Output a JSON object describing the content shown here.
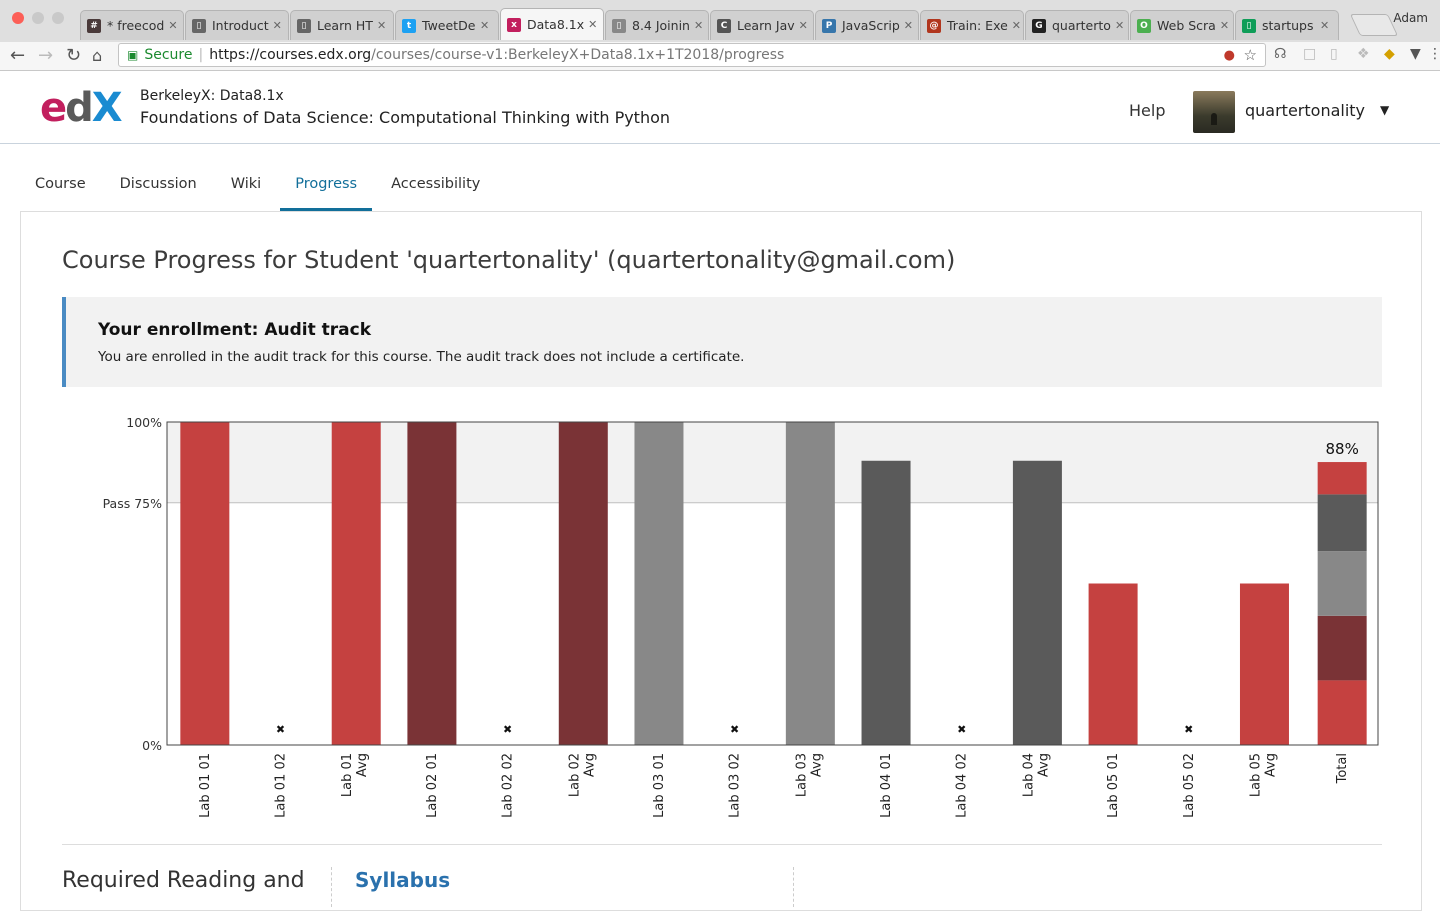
{
  "browser": {
    "profile": "Adam",
    "tabs": [
      {
        "title": "* freecod",
        "fav": "#",
        "fav_color": "#4a3a3a",
        "active": false
      },
      {
        "title": "Introduct",
        "fav": "▯",
        "fav_color": "#666666",
        "active": false
      },
      {
        "title": "Learn HT",
        "fav": "▯",
        "fav_color": "#666666",
        "active": false
      },
      {
        "title": "TweetDe",
        "fav": "t",
        "fav_color": "#1da1f2",
        "active": false
      },
      {
        "title": "Data8.1x",
        "fav": "x",
        "fav_color": "#c21f5e",
        "active": true
      },
      {
        "title": "8.4 Joinin",
        "fav": "▯",
        "fav_color": "#888888",
        "active": false
      },
      {
        "title": "Learn Jav",
        "fav": "C",
        "fav_color": "#555555",
        "active": false
      },
      {
        "title": "JavaScrip",
        "fav": "P",
        "fav_color": "#3776ab",
        "active": false
      },
      {
        "title": "Train: Exe",
        "fav": "@",
        "fav_color": "#b1361e",
        "active": false
      },
      {
        "title": "quarterto",
        "fav": "G",
        "fav_color": "#222222",
        "active": false
      },
      {
        "title": "Web Scra",
        "fav": "O",
        "fav_color": "#4caf50",
        "active": false
      },
      {
        "title": "startups",
        "fav": "▯",
        "fav_color": "#0f9d58",
        "active": false
      }
    ],
    "secure_label": "Secure",
    "url_host": "https://courses.edx.org",
    "url_path": "/courses/course-v1:BerkeleyX+Data8.1x+1T2018/progress"
  },
  "header": {
    "logo": {
      "e": "e",
      "d": "d",
      "x": "X"
    },
    "course_org": "BerkeleyX: Data8.1x",
    "course_name": "Foundations of Data Science: Computational Thinking with Python",
    "help": "Help",
    "username": "quartertonality"
  },
  "course_tabs": [
    {
      "label": "Course",
      "active": false
    },
    {
      "label": "Discussion",
      "active": false
    },
    {
      "label": "Wiki",
      "active": false
    },
    {
      "label": "Progress",
      "active": true
    },
    {
      "label": "Accessibility",
      "active": false
    }
  ],
  "main": {
    "page_title": "Course Progress for Student 'quartertonality' (quartertonality@gmail.com)",
    "enrollment_title": "Your enrollment: Audit track",
    "enrollment_message": "You are enrolled in the audit track for this course. The audit track does not include a certificate.",
    "req_title": "Required Reading and",
    "syllabus": "Syllabus"
  },
  "chart_data": {
    "type": "bar",
    "ylim": [
      0,
      100
    ],
    "y_ticks": [
      {
        "value": 100,
        "label": "100%"
      },
      {
        "value": 75,
        "label": "Pass 75%"
      },
      {
        "value": 0,
        "label": "0%"
      }
    ],
    "pass_value": 75,
    "categories": [
      "Lab 01 01",
      "Lab 01 02",
      "Lab 01 Avg",
      "Lab 02 01",
      "Lab 02 02",
      "Lab 02 Avg",
      "Lab 03 01",
      "Lab 03 02",
      "Lab 03 Avg",
      "Lab 04 01",
      "Lab 04 02",
      "Lab 04 Avg",
      "Lab 05 01",
      "Lab 05 02",
      "Lab 05 Avg",
      "Total"
    ],
    "values": [
      100,
      0,
      100,
      100,
      0,
      100,
      100,
      0,
      100,
      88,
      0,
      88,
      50,
      0,
      50,
      88
    ],
    "colors": [
      "#c54140",
      "#c54140",
      "#c54140",
      "#7a3336",
      "#7a3336",
      "#7a3336",
      "#888888",
      "#888888",
      "#888888",
      "#5a5a5a",
      "#5a5a5a",
      "#5a5a5a",
      "#c54140",
      "#c54140",
      "#c54140",
      "#c54140"
    ],
    "missing_marker": "✖",
    "total_label": "88%",
    "total_stack": [
      {
        "value": 20,
        "color": "#c54140"
      },
      {
        "value": 20,
        "color": "#7a3336"
      },
      {
        "value": 20,
        "color": "#888888"
      },
      {
        "value": 17.6,
        "color": "#5a5a5a"
      },
      {
        "value": 10,
        "color": "#c54140"
      }
    ]
  }
}
